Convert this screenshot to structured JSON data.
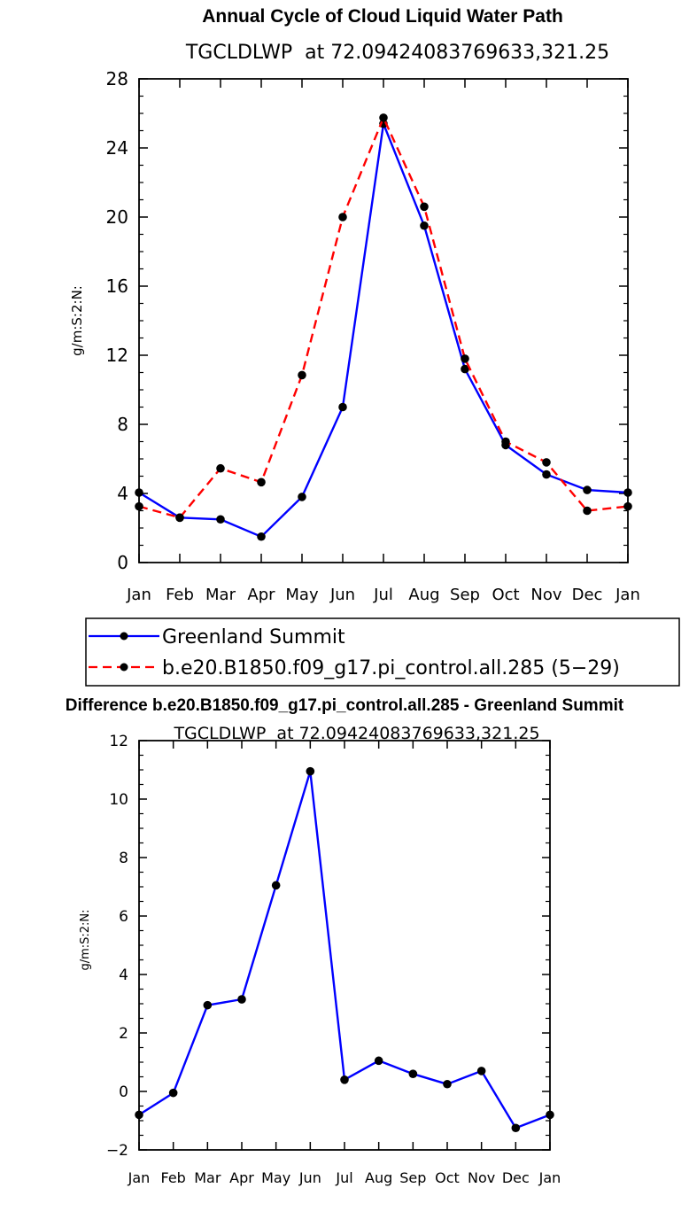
{
  "chart_data": [
    {
      "type": "line",
      "title": "Annual Cycle of Cloud Liquid Water Path",
      "subtitle": "TGCLDLWP  at 72.09424083769633,321.25",
      "xlabel": "",
      "ylabel": "g/m:S:2:N:",
      "categories": [
        "Jan",
        "Feb",
        "Mar",
        "Apr",
        "May",
        "Jun",
        "Jul",
        "Aug",
        "Sep",
        "Oct",
        "Nov",
        "Dec",
        "Jan"
      ],
      "ylim": [
        0,
        28
      ],
      "yticks": [
        "0",
        "4",
        "8",
        "12",
        "16",
        "20",
        "24",
        "28"
      ],
      "series": [
        {
          "name": "Greenland Summit",
          "color": "#0000ff",
          "dash": "solid",
          "values": [
            4.05,
            2.6,
            2.5,
            1.5,
            3.8,
            9.0,
            25.4,
            19.5,
            11.2,
            6.8,
            5.1,
            4.2,
            4.05
          ]
        },
        {
          "name": "b.e20.B1850.f09_g17.pi_control.all.285 (5−29)",
          "color": "#ff0000",
          "dash": "dashed",
          "values": [
            3.25,
            2.6,
            5.45,
            4.65,
            10.85,
            20.0,
            25.75,
            20.6,
            11.8,
            7.0,
            5.8,
            3.0,
            3.25
          ]
        }
      ]
    },
    {
      "type": "line",
      "title": "Difference b.e20.B1850.f09_g17.pi_control.all.285 - Greenland Summit",
      "subtitle": "TGCLDLWP  at 72.09424083769633,321.25",
      "xlabel": "",
      "ylabel": "g/m:S:2:N:",
      "categories": [
        "Jan",
        "Feb",
        "Mar",
        "Apr",
        "May",
        "Jun",
        "Jul",
        "Aug",
        "Sep",
        "Oct",
        "Nov",
        "Dec",
        "Jan"
      ],
      "ylim": [
        -2,
        12
      ],
      "yticks": [
        "−2",
        "0",
        "2",
        "4",
        "6",
        "8",
        "10",
        "12"
      ],
      "series": [
        {
          "name": "Difference",
          "color": "#0000ff",
          "dash": "solid",
          "values": [
            -0.8,
            -0.05,
            2.95,
            3.15,
            7.05,
            10.95,
            0.4,
            1.05,
            0.6,
            0.25,
            0.7,
            -1.25,
            -0.8
          ]
        }
      ]
    }
  ]
}
